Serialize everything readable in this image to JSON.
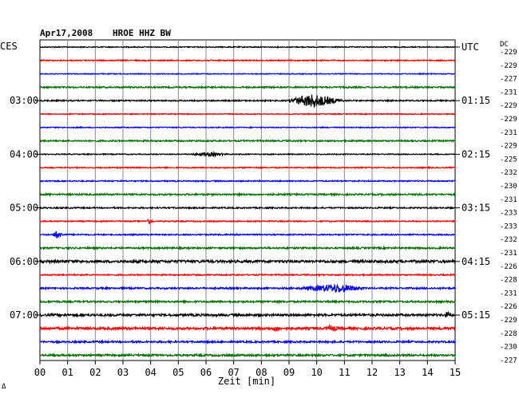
{
  "header": {
    "date": "Apr17,2008",
    "station": "HROE HHZ BW",
    "left_tz": "CES",
    "right_tz": "UTC",
    "dc_label": "DC"
  },
  "chart_data": {
    "type": "line",
    "title": "Apr17,2008   HROE HHZ BW",
    "xlabel": "Zeit [min]",
    "xlim": [
      0,
      15
    ],
    "x_ticks": [
      "00",
      "01",
      "02",
      "03",
      "04",
      "05",
      "06",
      "07",
      "08",
      "09",
      "10",
      "11",
      "12",
      "13",
      "14",
      "15"
    ],
    "grid": true,
    "trace_colors": [
      "#000000",
      "#ff0000",
      "#0000ff",
      "#007000"
    ],
    "left_hour_labels": [
      {
        "trace": 4,
        "label": "03:00"
      },
      {
        "trace": 8,
        "label": "04:00"
      },
      {
        "trace": 12,
        "label": "05:00"
      },
      {
        "trace": 16,
        "label": "06:00"
      },
      {
        "trace": 20,
        "label": "07:00"
      }
    ],
    "right_hour_labels": [
      {
        "trace": 0,
        "label": "UTC"
      },
      {
        "trace": 4,
        "label": "01:15"
      },
      {
        "trace": 8,
        "label": "02:15"
      },
      {
        "trace": 12,
        "label": "03:15"
      },
      {
        "trace": 16,
        "label": "04:15"
      },
      {
        "trace": 20,
        "label": "05:15"
      }
    ],
    "traces": [
      {
        "dc": "-229",
        "noise": 0.6,
        "events": []
      },
      {
        "dc": "-229",
        "noise": 0.7,
        "events": []
      },
      {
        "dc": "-227",
        "noise": 0.5,
        "events": []
      },
      {
        "dc": "-231",
        "noise": 0.9,
        "events": []
      },
      {
        "dc": "-229",
        "noise": 0.8,
        "events": [
          {
            "start": 8.9,
            "end": 11.0,
            "peak": 9.8,
            "amp": 8
          }
        ]
      },
      {
        "dc": "-229",
        "noise": 0.6,
        "events": []
      },
      {
        "dc": "-231",
        "noise": 0.6,
        "events": []
      },
      {
        "dc": "-229",
        "noise": 0.9,
        "events": []
      },
      {
        "dc": "-225",
        "noise": 0.6,
        "events": [
          {
            "start": 5.3,
            "end": 6.8,
            "peak": 6.2,
            "amp": 2
          }
        ]
      },
      {
        "dc": "-232",
        "noise": 0.7,
        "events": []
      },
      {
        "dc": "-230",
        "noise": 0.7,
        "events": []
      },
      {
        "dc": "-231",
        "noise": 1.0,
        "events": []
      },
      {
        "dc": "-233",
        "noise": 0.8,
        "events": []
      },
      {
        "dc": "-233",
        "noise": 0.7,
        "events": [
          {
            "start": 3.8,
            "end": 4.1,
            "peak": 3.9,
            "amp": 3
          }
        ]
      },
      {
        "dc": "-232",
        "noise": 0.8,
        "events": [
          {
            "start": 0.4,
            "end": 0.9,
            "peak": 0.6,
            "amp": 4
          }
        ]
      },
      {
        "dc": "-231",
        "noise": 1.0,
        "events": []
      },
      {
        "dc": "-226",
        "noise": 1.6,
        "events": []
      },
      {
        "dc": "-228",
        "noise": 0.8,
        "events": []
      },
      {
        "dc": "-231",
        "noise": 1.0,
        "events": [
          {
            "start": 9.3,
            "end": 11.7,
            "peak": 10.8,
            "amp": 5
          }
        ]
      },
      {
        "dc": "-226",
        "noise": 1.1,
        "events": []
      },
      {
        "dc": "-229",
        "noise": 1.4,
        "events": [
          {
            "start": 14.6,
            "end": 14.9,
            "peak": 14.7,
            "amp": 3
          }
        ]
      },
      {
        "dc": "-228",
        "noise": 1.5,
        "events": [
          {
            "start": 8.4,
            "end": 8.7,
            "peak": 8.5,
            "amp": 3
          },
          {
            "start": 10.3,
            "end": 10.8,
            "peak": 10.5,
            "amp": 3
          }
        ]
      },
      {
        "dc": "-230",
        "noise": 1.1,
        "events": []
      },
      {
        "dc": "-227",
        "noise": 1.2,
        "events": []
      }
    ]
  },
  "footer": {
    "corner_mark": "Δ"
  }
}
